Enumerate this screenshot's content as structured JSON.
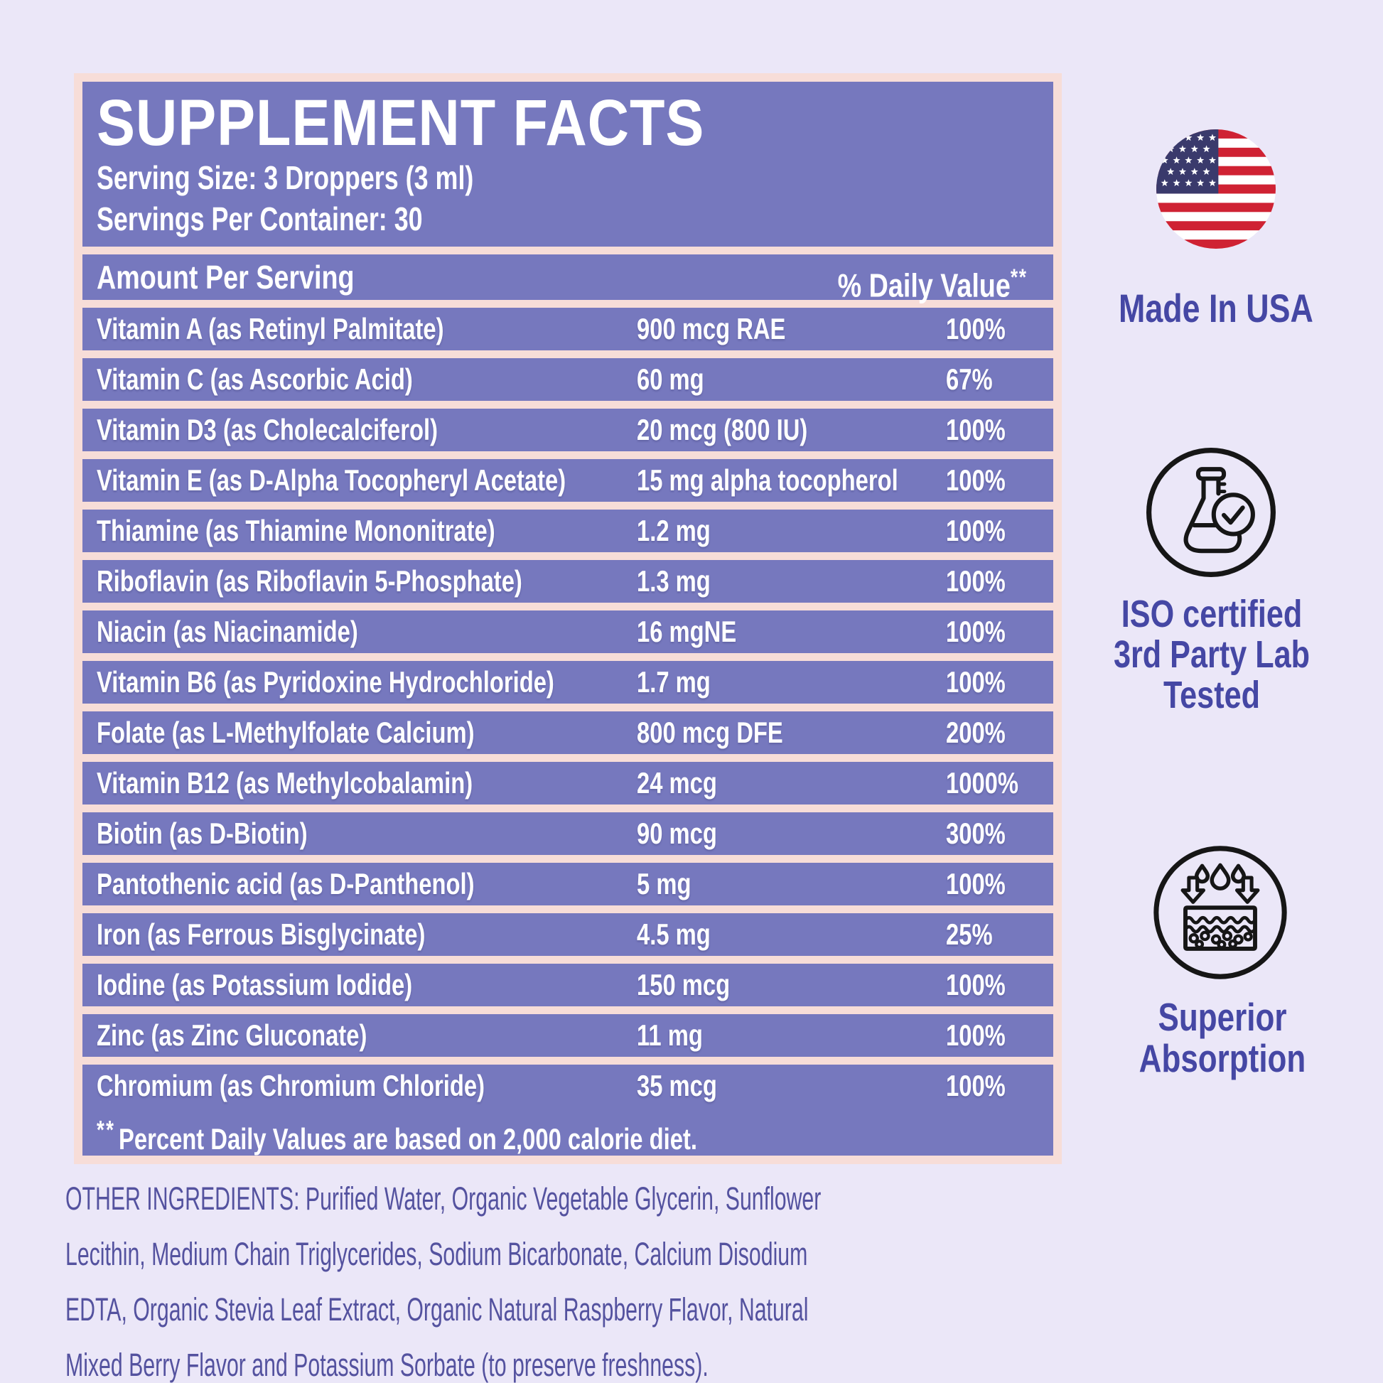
{
  "colors": {
    "page_background": "#ebe7f8",
    "panel_frame": "#f7ddd8",
    "panel_row": "#7678be",
    "row_text": "#ffffff",
    "badge_text": "#4547a4",
    "paragraph_text": "#54529f",
    "flag_red": "#cf2233",
    "flag_blue": "#3a3a6c",
    "icon_stroke": "#161616"
  },
  "panel": {
    "title": "SUPPLEMENT FACTS",
    "serving_size": "Serving Size: 3 Droppers (3 ml)",
    "servings_per_container": "Servings Per Container: 30",
    "columns": {
      "amount_header": "Amount Per Serving",
      "daily_value_header": "% Daily Value",
      "daily_value_sup": "**"
    },
    "rows": [
      {
        "name": "Vitamin A (as Retinyl Palmitate)",
        "amount": "900 mcg RAE",
        "daily_value": "100%"
      },
      {
        "name": "Vitamin C (as Ascorbic Acid)",
        "amount": "60 mg",
        "daily_value": "67%"
      },
      {
        "name": "Vitamin D3 (as Cholecalciferol)",
        "amount": "20 mcg (800 IU)",
        "daily_value": "100%"
      },
      {
        "name": "Vitamin E (as D-Alpha Tocopheryl Acetate)",
        "amount": "15 mg alpha tocopherol",
        "daily_value": "100%"
      },
      {
        "name": "Thiamine (as Thiamine Mononitrate)",
        "amount": "1.2 mg",
        "daily_value": "100%"
      },
      {
        "name": "Riboflavin (as Riboflavin 5-Phosphate)",
        "amount": "1.3 mg",
        "daily_value": "100%"
      },
      {
        "name": "Niacin (as Niacinamide)",
        "amount": "16 mgNE",
        "daily_value": "100%"
      },
      {
        "name": "Vitamin B6 (as Pyridoxine Hydrochloride)",
        "amount": "1.7 mg",
        "daily_value": "100%"
      },
      {
        "name": "Folate (as L-Methylfolate Calcium)",
        "amount": "800 mcg DFE",
        "daily_value": "200%"
      },
      {
        "name": "Vitamin B12 (as Methylcobalamin)",
        "amount": "24 mcg",
        "daily_value": "1000%"
      },
      {
        "name": "Biotin (as D-Biotin)",
        "amount": "90 mcg",
        "daily_value": "300%"
      },
      {
        "name": "Pantothenic acid (as D-Panthenol)",
        "amount": "5 mg",
        "daily_value": "100%"
      },
      {
        "name": "Iron (as Ferrous Bisglycinate)",
        "amount": "4.5 mg",
        "daily_value": "25%"
      },
      {
        "name": "Iodine (as Potassium Iodide)",
        "amount": "150 mcg",
        "daily_value": "100%"
      },
      {
        "name": "Zinc (as Zinc Gluconate)",
        "amount": "11 mg",
        "daily_value": "100%"
      },
      {
        "name": "Chromium (as Chromium Chloride)",
        "amount": "35 mcg",
        "daily_value": "100%"
      }
    ],
    "footnote": {
      "prefix": "**",
      "text": "Percent Daily Values are based on 2,000 calorie diet."
    }
  },
  "badges": {
    "made_in_usa": {
      "icon": "usa-flag-icon",
      "lines": [
        "Made In USA"
      ]
    },
    "iso": {
      "icon": "lab-flask-check-icon",
      "lines": [
        "ISO certified",
        "3rd Party Lab",
        "Tested"
      ]
    },
    "absorption": {
      "icon": "skin-absorption-icon",
      "lines": [
        "Superior",
        "Absorption"
      ]
    }
  },
  "other_ingredients": {
    "lines": [
      "OTHER INGREDIENTS: Purified Water, Organic Vegetable Glycerin, Sunflower",
      "Lecithin, Medium Chain Triglycerides, Sodium Bicarbonate, Calcium Disodium",
      "EDTA, Organic Stevia Leaf Extract, Organic Natural Raspberry Flavor, Natural",
      "Mixed Berry Flavor and Potassium Sorbate (to preserve freshness)."
    ]
  }
}
